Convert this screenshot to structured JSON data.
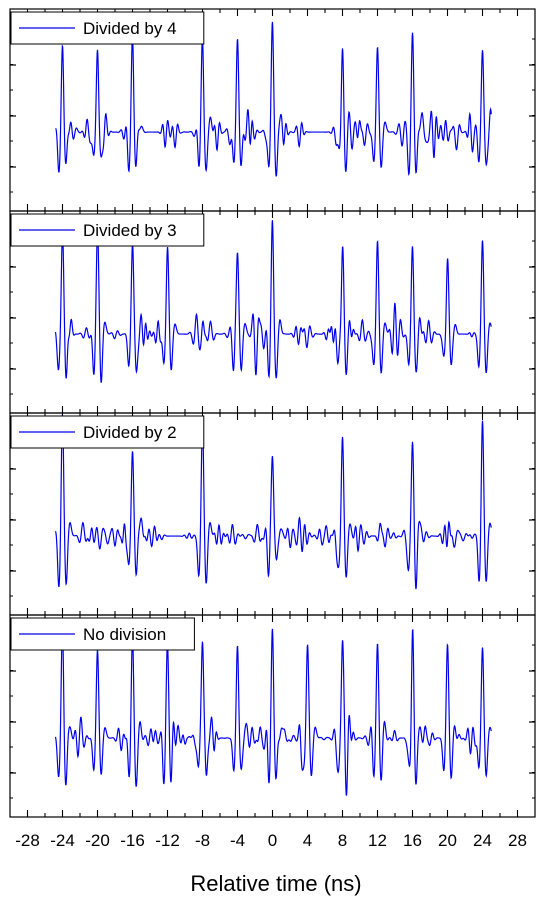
{
  "chart_data": {
    "type": "line",
    "xlabel": "Relative time (ns)",
    "xlim": [
      -30,
      30
    ],
    "x_ticks": [
      "-28",
      "-24",
      "-20",
      "-16",
      "-12",
      "-8",
      "-4",
      "0",
      "4",
      "8",
      "12",
      "16",
      "20",
      "24",
      "28"
    ],
    "grid": false,
    "legend_position": "top-left",
    "line_color": "#0000ee",
    "panels": [
      {
        "series_name": "Divided by 4",
        "x_range": [
          -24.8,
          25
        ],
        "baseline": 0,
        "ylim": [
          -1.1,
          1.95
        ],
        "peaks": [
          {
            "t": -24,
            "a": 1.45
          },
          {
            "t": -20,
            "a": 1.45
          },
          {
            "t": -16,
            "a": 1.6
          },
          {
            "t": -8,
            "a": 1.5
          },
          {
            "t": -4,
            "a": 1.6
          },
          {
            "t": 0,
            "a": 1.9
          },
          {
            "t": 8,
            "a": 1.35
          },
          {
            "t": 12,
            "a": 1.45
          },
          {
            "t": 16,
            "a": 1.6
          },
          {
            "t": 24,
            "a": 1.4
          }
        ]
      },
      {
        "series_name": "Divided by 3",
        "x_range": [
          -24.8,
          25
        ],
        "baseline": 0,
        "ylim": [
          -1.1,
          1.95
        ],
        "peaks": [
          {
            "t": -24,
            "a": 1.8
          },
          {
            "t": -20,
            "a": 1.55
          },
          {
            "t": -16,
            "a": 1.55
          },
          {
            "t": -12,
            "a": 1.45
          },
          {
            "t": -4,
            "a": 1.5
          },
          {
            "t": 0,
            "a": 1.85
          },
          {
            "t": 8,
            "a": 1.6
          },
          {
            "t": 12,
            "a": 1.6
          },
          {
            "t": 16,
            "a": 1.5
          },
          {
            "t": 20,
            "a": 1.35
          },
          {
            "t": 24,
            "a": 1.6
          }
        ]
      },
      {
        "series_name": "Divided by 2",
        "x_range": [
          -24.8,
          25
        ],
        "baseline": 0,
        "ylim": [
          -1.1,
          1.95
        ],
        "peaks": [
          {
            "t": -24,
            "a": 1.95
          },
          {
            "t": -16,
            "a": 1.45
          },
          {
            "t": -8,
            "a": 1.95
          },
          {
            "t": 0,
            "a": 1.5
          },
          {
            "t": 8,
            "a": 1.7
          },
          {
            "t": 16,
            "a": 1.5
          },
          {
            "t": 24,
            "a": 1.85
          }
        ]
      },
      {
        "series_name": "No division",
        "x_range": [
          -24.8,
          25
        ],
        "baseline": 0,
        "ylim": [
          -1.1,
          1.95
        ],
        "peaks": [
          {
            "t": -24,
            "a": 1.75
          },
          {
            "t": -20,
            "a": 1.5
          },
          {
            "t": -16,
            "a": 1.6
          },
          {
            "t": -12,
            "a": 1.5
          },
          {
            "t": -8,
            "a": 1.85
          },
          {
            "t": -4,
            "a": 1.6
          },
          {
            "t": 0,
            "a": 2.0
          },
          {
            "t": 4,
            "a": 1.6
          },
          {
            "t": 8,
            "a": 1.75
          },
          {
            "t": 12,
            "a": 1.6
          },
          {
            "t": 16,
            "a": 1.6
          },
          {
            "t": 20,
            "a": 1.6
          },
          {
            "t": 24,
            "a": 1.55
          }
        ]
      }
    ]
  }
}
